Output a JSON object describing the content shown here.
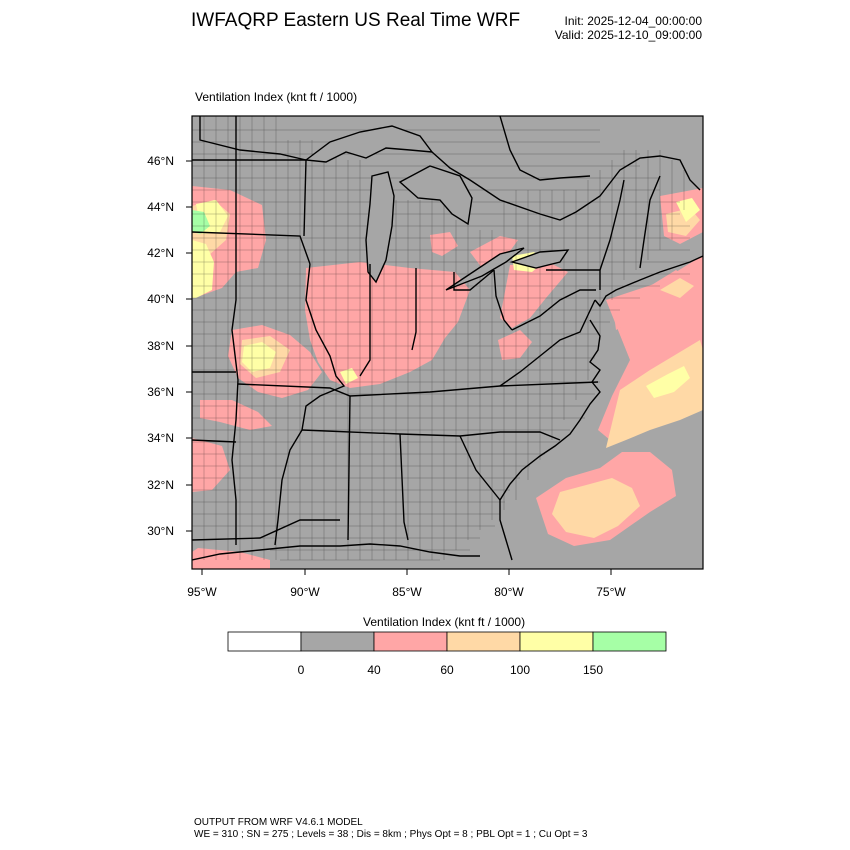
{
  "header": {
    "title": "IWFAQRP Eastern US Real Time WRF",
    "init": "Init: 2025-12-04_00:00:00",
    "valid": "Valid: 2025-12-10_09:00:00"
  },
  "map": {
    "field_title": "Ventilation Index   (knt ft / 1000)",
    "lat_labels": [
      "46°N",
      "44°N",
      "42°N",
      "40°N",
      "38°N",
      "36°N",
      "34°N",
      "32°N",
      "30°N"
    ],
    "lon_labels": [
      "95°W",
      "90°W",
      "85°W",
      "80°W",
      "75°W"
    ],
    "background_color": "#a6a6a6",
    "layers": {
      "low": "#ffa6a6",
      "moderate": "#ffd9a6",
      "good": "#ffffa6",
      "excellent": "#a6ffa6"
    }
  },
  "legend": {
    "title": "Ventilation Index  (knt ft / 1000)",
    "colors": [
      "#ffffff",
      "#a6a6a6",
      "#ffa6a6",
      "#ffd9a6",
      "#ffffa6",
      "#a6ffa6"
    ],
    "tick_labels": [
      "0",
      "40",
      "60",
      "100",
      "150"
    ]
  },
  "footer": {
    "line1": "OUTPUT FROM WRF V4.6.1 MODEL",
    "line2": "WE = 310 ; SN = 275 ; Levels = 38 ; Dis = 8km ; Phys Opt = 8 ; PBL Opt = 1 ; Cu Opt = 3"
  }
}
